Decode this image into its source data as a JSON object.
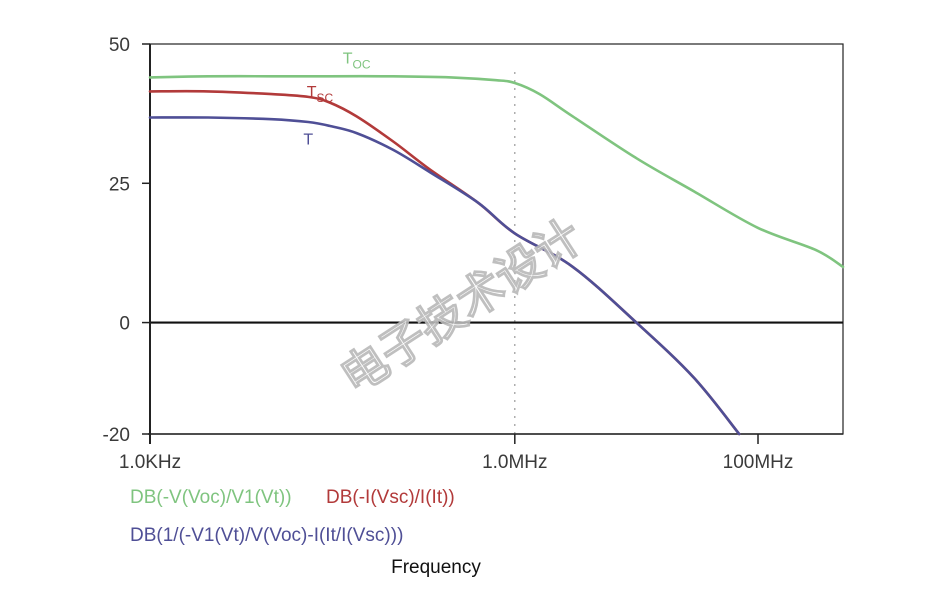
{
  "chart_data": {
    "type": "line",
    "xlabel": "Frequency",
    "x_scale": "log",
    "xlim": [
      1000,
      500000000
    ],
    "ylim": [
      -20,
      50
    ],
    "y_ticks": [
      50,
      25,
      0,
      -20
    ],
    "x_ticks": [
      {
        "value": 1000,
        "label": "1.0KHz"
      },
      {
        "value": 1000000,
        "label": "1.0MHz"
      },
      {
        "value": 100000000,
        "label": "100MHz"
      }
    ],
    "series": [
      {
        "name": "DB(-V(Voc)/V1(Vt))",
        "color": "#7fc47f",
        "annotation": {
          "base": "T",
          "sub": "OC",
          "x": 50000,
          "y": 46.5
        },
        "x": [
          1000,
          3000,
          10000,
          30000,
          100000,
          300000,
          700000,
          1000000,
          1600000,
          3000000,
          10000000,
          30000000,
          100000000,
          300000000,
          500000000
        ],
        "y": [
          44,
          44.2,
          44.2,
          44.2,
          44.2,
          44,
          43.5,
          43,
          41,
          37,
          29.5,
          23.5,
          17,
          13,
          10
        ]
      },
      {
        "name": "DB(-I(Vsc)/I(It))",
        "color": "#b23a3a",
        "annotation": {
          "base": "T",
          "sub": "SC",
          "x": 25000,
          "y": 40.5
        },
        "x": [
          1000,
          3000,
          10000,
          20000,
          30000,
          50000,
          100000,
          200000,
          500000,
          1000000,
          3000000,
          10000000,
          30000000,
          70000000
        ],
        "y": [
          41.5,
          41.5,
          41,
          40.5,
          39.5,
          37,
          32.5,
          27.5,
          21.5,
          16,
          10,
          0,
          -10,
          -20
        ]
      },
      {
        "name": "DB(1/(-V1(Vt)/V(Voc)-I(It/I(Vsc)))",
        "color": "#4f4f96",
        "annotation": {
          "base": "T",
          "sub": "",
          "x": 20000,
          "y": 32
        },
        "x": [
          1000,
          3000,
          10000,
          20000,
          30000,
          50000,
          100000,
          200000,
          500000,
          1000000,
          3000000,
          10000000,
          30000000,
          70000000
        ],
        "y": [
          36.8,
          36.8,
          36.5,
          36,
          35.3,
          34,
          31,
          27,
          21.5,
          16,
          10,
          0,
          -10,
          -20
        ]
      }
    ]
  },
  "watermark": "电子技术设计",
  "colors": {
    "axis": "#222222",
    "zero_line": "#111111",
    "grid": "#999999"
  }
}
